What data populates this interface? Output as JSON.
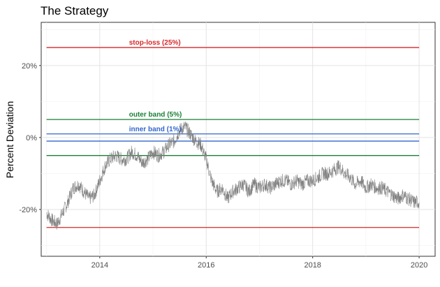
{
  "chart_data": {
    "type": "line",
    "title": "The Strategy",
    "xlabel": "",
    "ylabel": "Percent Deviation",
    "xlim": [
      2012.9,
      2020.3
    ],
    "ylim": [
      -33,
      32
    ],
    "x_ticks": [
      2014,
      2016,
      2018,
      2020
    ],
    "x_tick_labels": [
      "2014",
      "2016",
      "2018",
      "2020"
    ],
    "y_ticks": [
      -20,
      0,
      20
    ],
    "y_tick_labels": [
      "-20%",
      "0%",
      "20%"
    ],
    "grid": true,
    "legend": "none",
    "reference_lines": [
      {
        "name": "stop-loss (25%)",
        "values": [
          25,
          -25
        ],
        "color": "#d62728",
        "label": "stop-loss (25%)"
      },
      {
        "name": "outer band (5%)",
        "values": [
          5,
          -5
        ],
        "color": "#1a7f37",
        "label": "outer band (5%)"
      },
      {
        "name": "inner band (1%)",
        "values": [
          1,
          -1
        ],
        "color": "#3366cc",
        "label": "inner band (1%)"
      }
    ],
    "line_x_range": [
      2013.0,
      2020.0
    ],
    "series": [
      {
        "color": "#808080",
        "x": [
          2013.0,
          2013.1,
          2013.2,
          2013.3,
          2013.4,
          2013.5,
          2013.6,
          2013.7,
          2013.8,
          2013.9,
          2014.0,
          2014.1,
          2014.2,
          2014.3,
          2014.4,
          2014.5,
          2014.6,
          2014.7,
          2014.8,
          2014.9,
          2015.0,
          2015.1,
          2015.2,
          2015.3,
          2015.4,
          2015.5,
          2015.6,
          2015.7,
          2015.8,
          2015.9,
          2016.0,
          2016.1,
          2016.2,
          2016.3,
          2016.4,
          2016.5,
          2016.6,
          2016.7,
          2016.8,
          2016.9,
          2017.0,
          2017.1,
          2017.2,
          2017.3,
          2017.4,
          2017.5,
          2017.6,
          2017.7,
          2017.8,
          2017.9,
          2018.0,
          2018.1,
          2018.2,
          2018.3,
          2018.4,
          2018.5,
          2018.6,
          2018.7,
          2018.8,
          2018.9,
          2019.0,
          2019.1,
          2019.2,
          2019.3,
          2019.4,
          2019.5,
          2019.6,
          2019.7,
          2019.8,
          2019.9,
          2020.0
        ],
        "y": [
          -21,
          -23,
          -24,
          -21,
          -18,
          -14,
          -13,
          -15,
          -17,
          -16,
          -12,
          -8,
          -6,
          -5,
          -6,
          -6,
          -4,
          -5,
          -7,
          -6,
          -4,
          -5,
          -4,
          -2,
          -1,
          2,
          3,
          1,
          -1,
          -2,
          -6,
          -12,
          -15,
          -14,
          -17,
          -15,
          -14,
          -13,
          -15,
          -13,
          -14,
          -13,
          -14,
          -13,
          -12,
          -12,
          -13,
          -12,
          -13,
          -12,
          -12,
          -11,
          -10,
          -10,
          -9,
          -8,
          -10,
          -11,
          -13,
          -12,
          -14,
          -13,
          -14,
          -14,
          -15,
          -16,
          -17,
          -16,
          -17,
          -18,
          -18
        ]
      }
    ]
  }
}
